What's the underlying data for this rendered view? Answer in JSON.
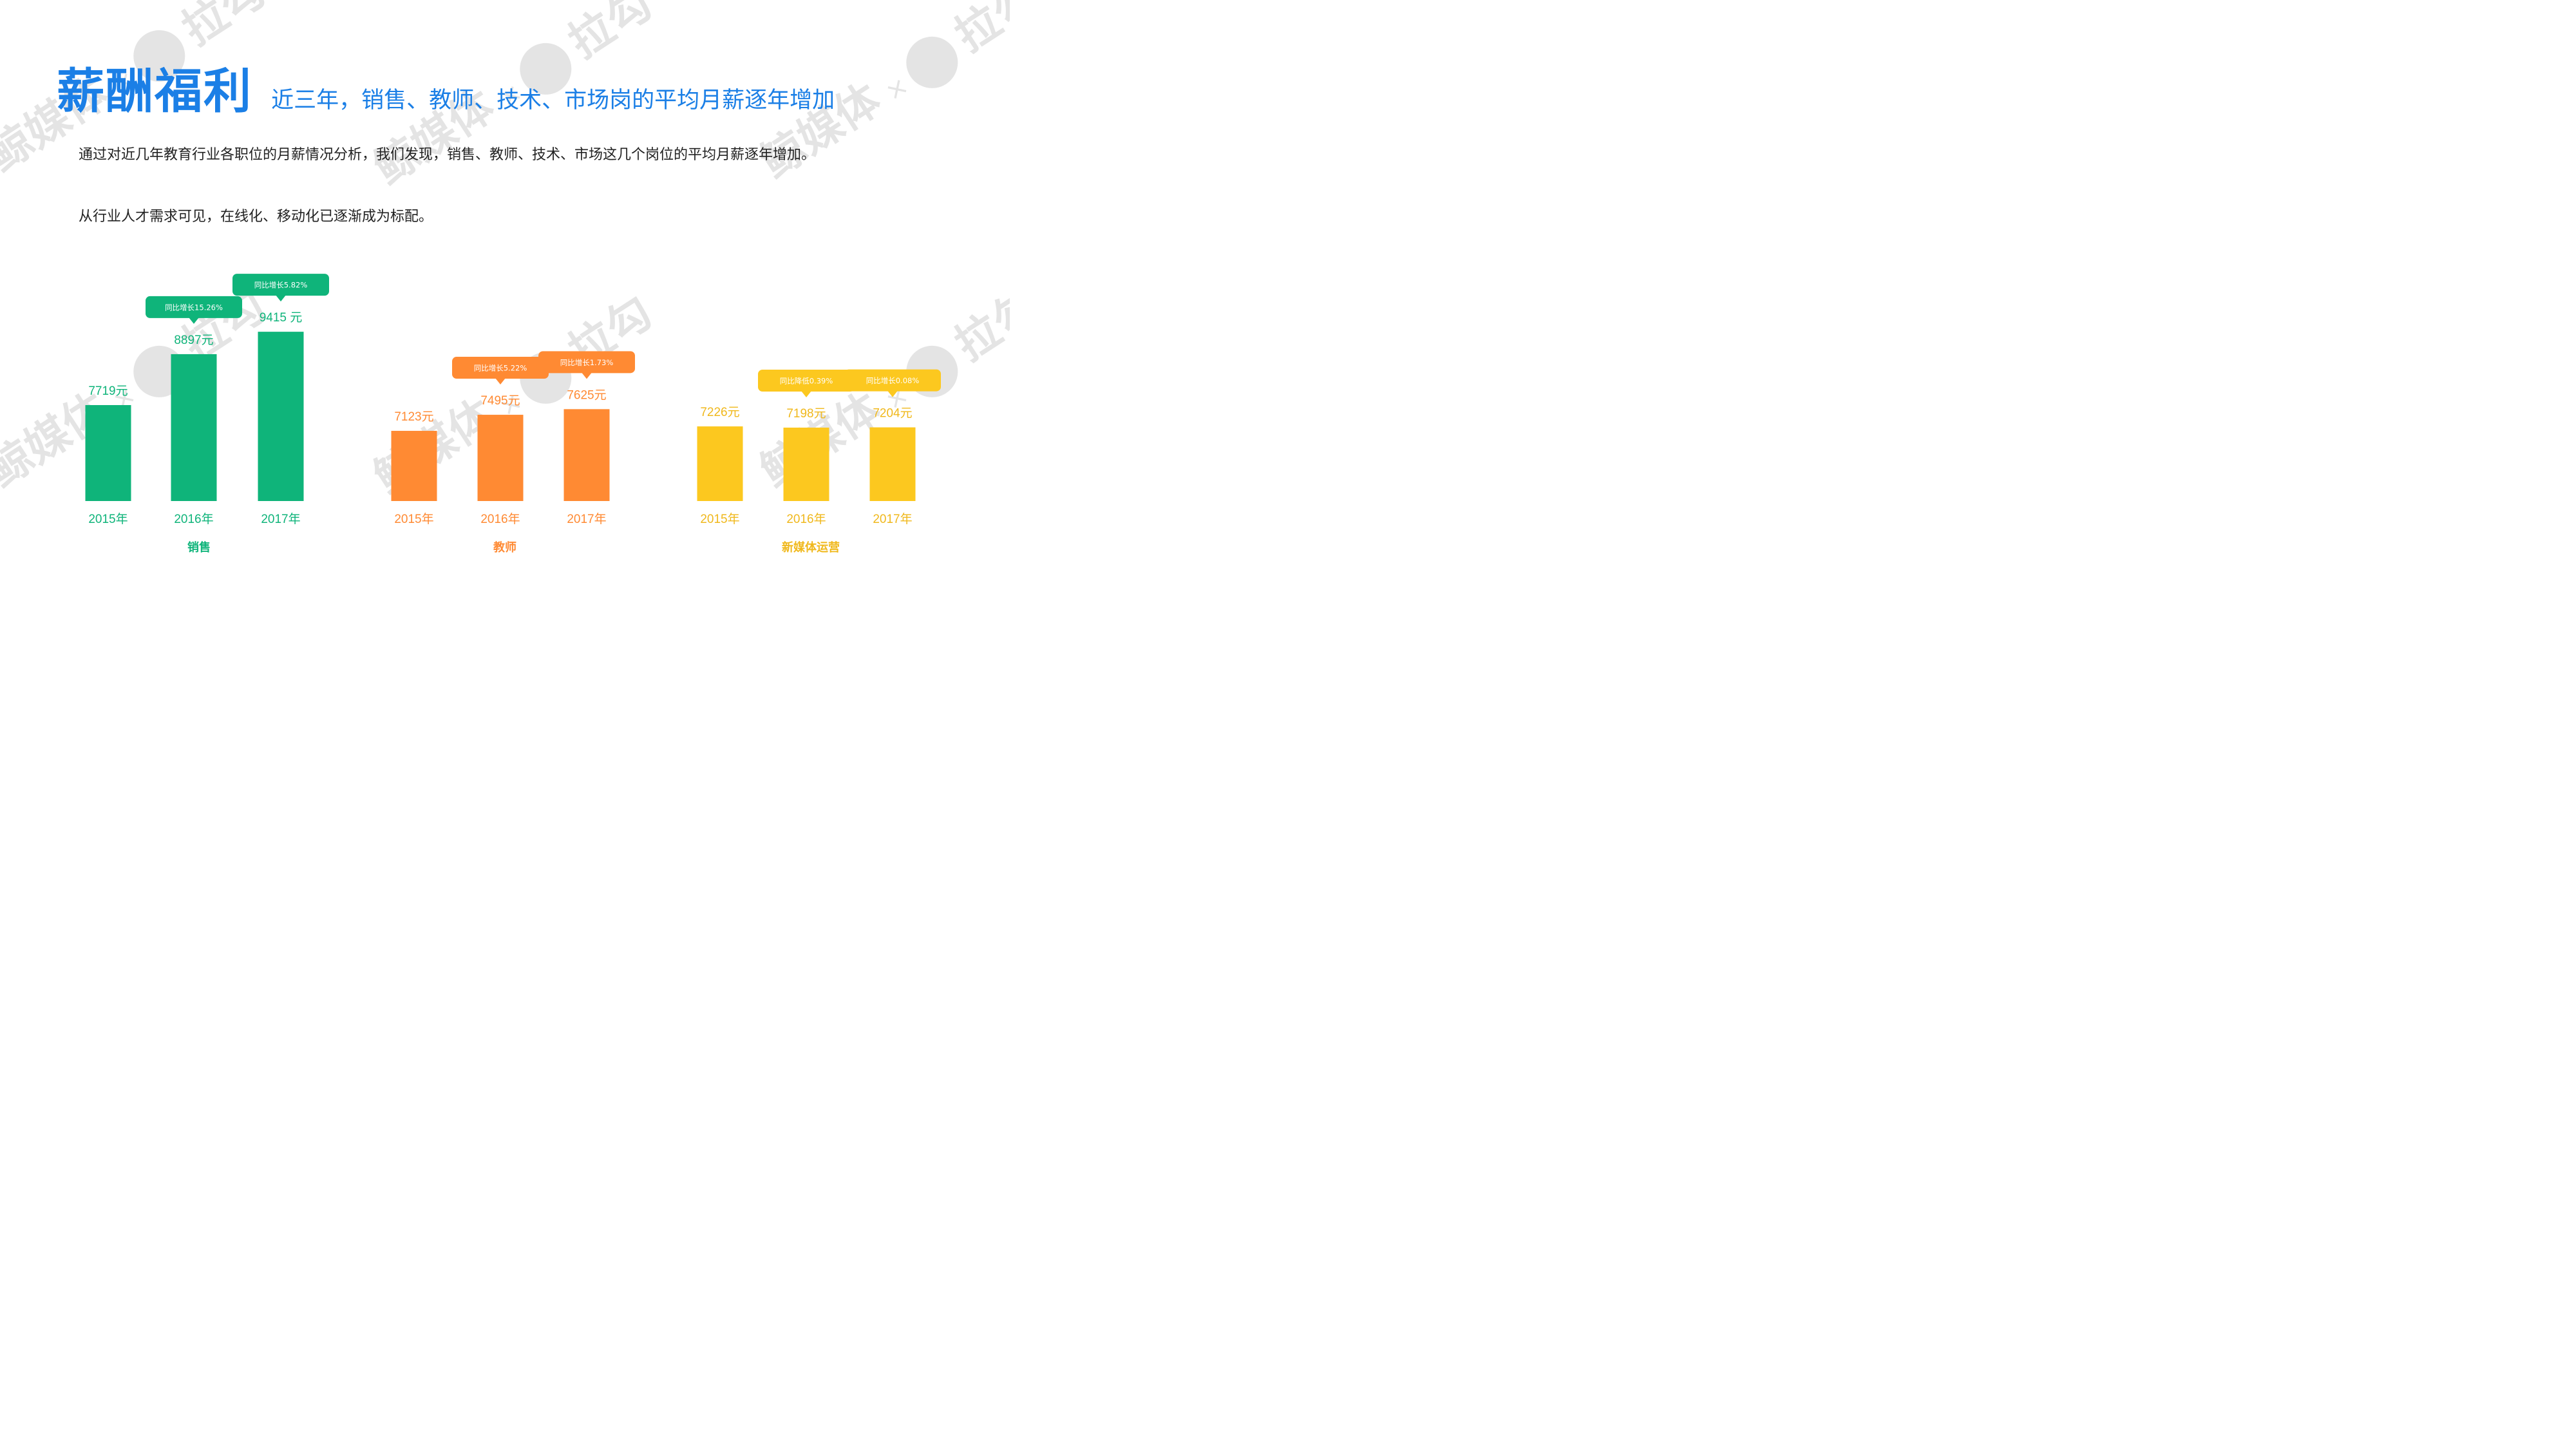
{
  "header": {
    "title": "薪酬福利",
    "subtitle": "近三年，销售、教师、技术、市场岗的平均月薪逐年增加"
  },
  "description": {
    "paragraph_1": "通过对近几年教育行业各职位的月薪情况分析，我们发现，销售、教师、技术、市场这几个岗位的平均月薪逐年增加。",
    "paragraph_2": "从行业人才需求可见，在线化、移动化已逐渐成为标配。"
  },
  "watermark": {
    "brand_text": "拉勾",
    "partner_text": "鲸媒体",
    "connector": "×"
  },
  "colors": {
    "title_blue": "#1b7fe6",
    "sales_green": "#0fb47a",
    "teacher_orange": "#ff8a33",
    "media_yellow": "#fcc81f",
    "media_text": "#f0b81c"
  },
  "chart_data": [
    {
      "type": "bar",
      "group_label": "销售",
      "color": "#0fb47a",
      "categories": [
        "2015年",
        "2016年",
        "2017年"
      ],
      "values": [
        7719,
        8897,
        9415
      ],
      "value_labels": [
        "7719元",
        "8897元",
        "9415 元"
      ],
      "callouts": [
        null,
        "同比增长15.26%",
        "同比增长5.82%"
      ]
    },
    {
      "type": "bar",
      "group_label": "教师",
      "color": "#ff8a33",
      "categories": [
        "2015年",
        "2016年",
        "2017年"
      ],
      "values": [
        7123,
        7495,
        7625
      ],
      "value_labels": [
        "7123元",
        "7495元",
        "7625元"
      ],
      "callouts": [
        null,
        "同比增长5.22%",
        "同比增长1.73%"
      ]
    },
    {
      "type": "bar",
      "group_label": "新媒体运营",
      "color": "#fcc81f",
      "text_color": "#f0b81c",
      "categories": [
        "2015年",
        "2016年",
        "2017年"
      ],
      "values": [
        7226,
        7198,
        7204
      ],
      "value_labels": [
        "7226元",
        "7198元",
        "7204元"
      ],
      "callouts": [
        null,
        "同比降低0.39%",
        "同比增长0.08%"
      ]
    }
  ]
}
